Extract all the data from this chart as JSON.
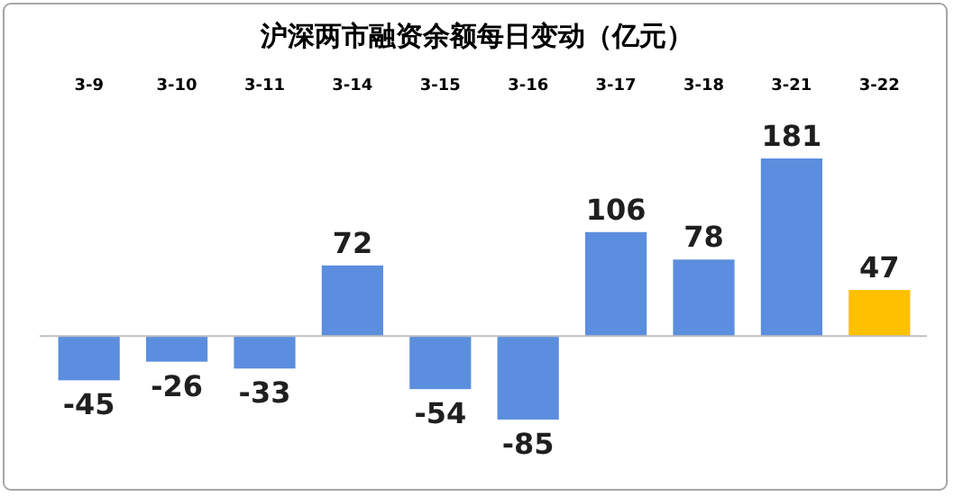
{
  "chart_data": {
    "type": "bar",
    "title": "沪深两市融资余额每日变动（亿元）",
    "categories": [
      "3-9",
      "3-10",
      "3-11",
      "3-14",
      "3-15",
      "3-16",
      "3-17",
      "3-18",
      "3-21",
      "3-22"
    ],
    "values": [
      -45,
      -26,
      -33,
      72,
      -54,
      -85,
      106,
      78,
      181,
      47
    ],
    "colors": [
      "#5b8ede",
      "#5b8ede",
      "#5b8ede",
      "#5b8ede",
      "#5b8ede",
      "#5b8ede",
      "#5b8ede",
      "#5b8ede",
      "#5b8ede",
      "#ffc000"
    ],
    "data_labels": true
  }
}
